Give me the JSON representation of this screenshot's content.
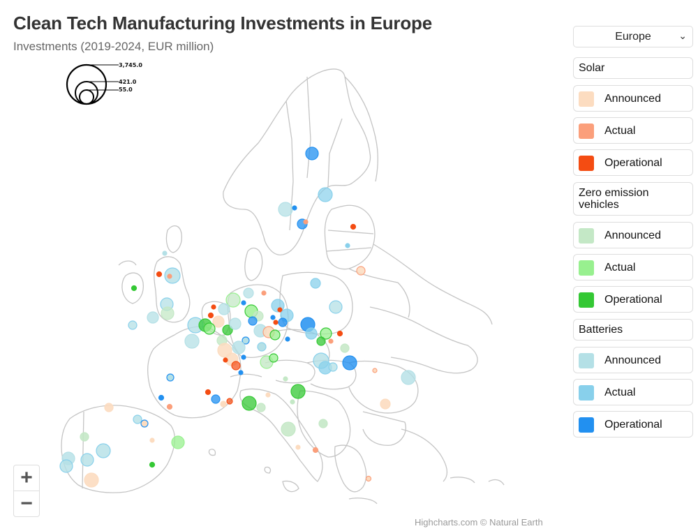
{
  "title": "Clean Tech Manufacturing Investments in Europe",
  "subtitle": "Investments (2019-2024, EUR million)",
  "credits": "Highcharts.com © Natural Earth",
  "region_select": {
    "selected": "Europe"
  },
  "zoom": {
    "in_label": "+",
    "out_label": "−"
  },
  "bubble_legend": {
    "values": [
      "3,745.0",
      "421.0",
      "55.0"
    ]
  },
  "legend": {
    "groups": [
      {
        "name": "Solar",
        "items": [
          {
            "label": "Announced",
            "color": "#fcdcc0"
          },
          {
            "label": "Actual",
            "color": "#fb9f7b"
          },
          {
            "label": "Operational",
            "color": "#f44c12"
          }
        ]
      },
      {
        "name": "Zero emission vehicles",
        "items": [
          {
            "label": "Announced",
            "color": "#c4e8c6"
          },
          {
            "label": "Actual",
            "color": "#98f08f"
          },
          {
            "label": "Operational",
            "color": "#34c834"
          }
        ]
      },
      {
        "name": "Batteries",
        "items": [
          {
            "label": "Announced",
            "color": "#b4e0e6"
          },
          {
            "label": "Actual",
            "color": "#88d0eb"
          },
          {
            "label": "Operational",
            "color": "#2290f0"
          }
        ]
      }
    ]
  },
  "colors": {
    "map_border": "#c4c4c4",
    "solar_announced": "#fcdcc0",
    "solar_actual": "#fb9f7b",
    "solar_operational": "#f44c12",
    "zev_announced": "#c4e8c6",
    "zev_actual": "#98f08f",
    "zev_operational": "#34c834",
    "bat_announced": "#b4e0e6",
    "bat_actual": "#88d0eb",
    "bat_operational": "#2290f0"
  },
  "chart_data": {
    "type": "bubble-map",
    "title": "Clean Tech Manufacturing Investments in Europe",
    "subtitle": "Investments (2019-2024, EUR million)",
    "bubble_size_legend": [
      3745.0,
      421.0,
      55.0
    ],
    "series": [
      {
        "name": "Solar – Announced"
      },
      {
        "name": "Solar – Actual"
      },
      {
        "name": "Solar – Operational"
      },
      {
        "name": "Zero emission vehicles – Announced"
      },
      {
        "name": "Zero emission vehicles – Actual"
      },
      {
        "name": "Zero emission vehicles – Operational"
      },
      {
        "name": "Batteries – Announced"
      },
      {
        "name": "Batteries – Actual"
      },
      {
        "name": "Batteries – Operational"
      }
    ]
  }
}
